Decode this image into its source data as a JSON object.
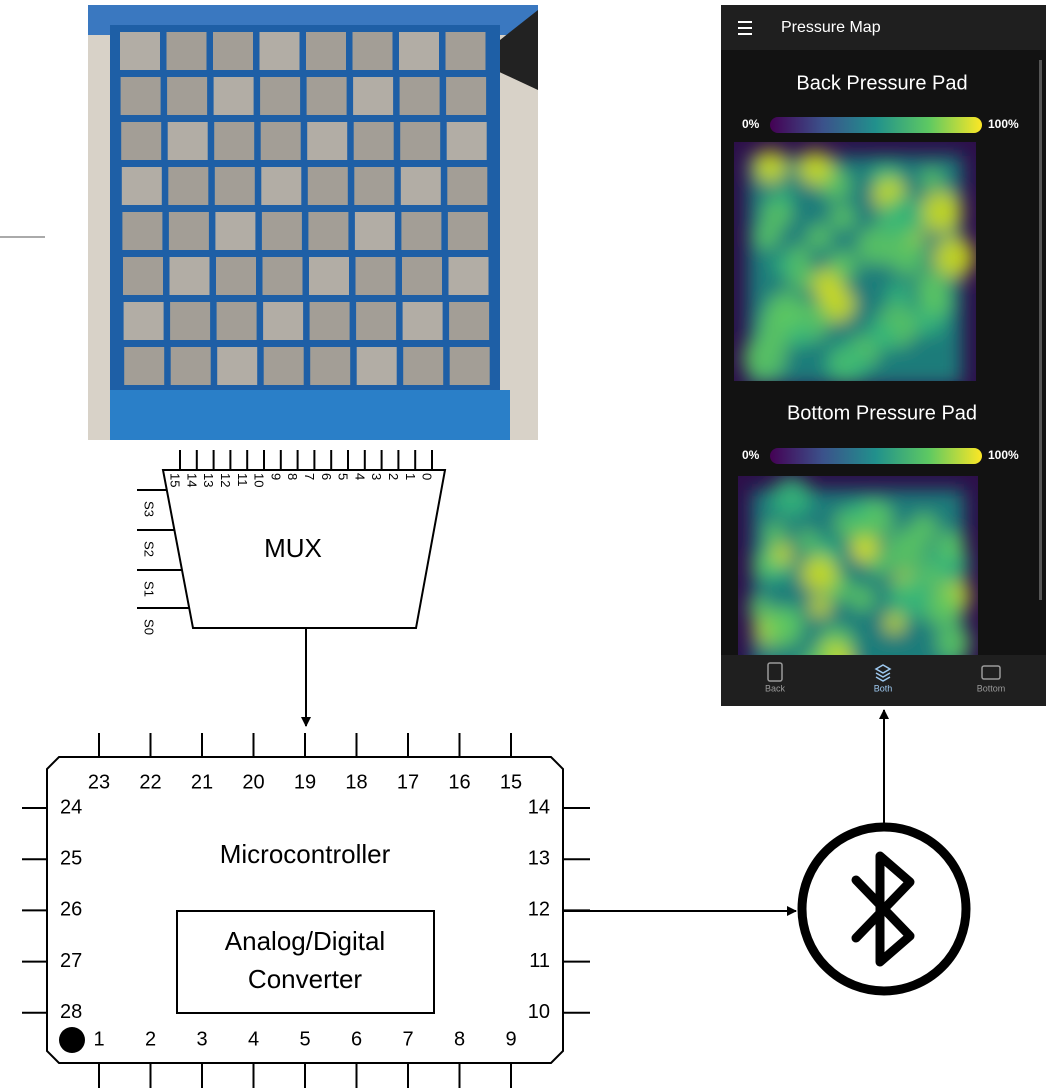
{
  "mux": {
    "label": "MUX",
    "inputs": [
      "15",
      "14",
      "13",
      "12",
      "11",
      "10",
      "9",
      "8",
      "7",
      "6",
      "5",
      "4",
      "3",
      "2",
      "1",
      "0"
    ],
    "selects": [
      "S3",
      "S2",
      "S1",
      "S0"
    ]
  },
  "microcontroller": {
    "label": "Microcontroller",
    "adc": [
      "Analog/Digital",
      "Converter"
    ],
    "pins": {
      "top": [
        "23",
        "22",
        "21",
        "20",
        "19",
        "18",
        "17",
        "16",
        "15"
      ],
      "bottom": [
        "1",
        "2",
        "3",
        "4",
        "5",
        "6",
        "7",
        "8",
        "9"
      ],
      "left": [
        "24",
        "25",
        "26",
        "27",
        "28"
      ],
      "right": [
        "14",
        "13",
        "12",
        "11",
        "10"
      ]
    }
  },
  "app": {
    "title": "Pressure Map",
    "sections": [
      {
        "title": "Back Pressure Pad",
        "min": "0%",
        "max": "100%"
      },
      {
        "title": "Bottom Pressure Pad",
        "min": "0%",
        "max": "100%"
      }
    ],
    "nav": [
      "Back",
      "Both",
      "Bottom"
    ]
  }
}
